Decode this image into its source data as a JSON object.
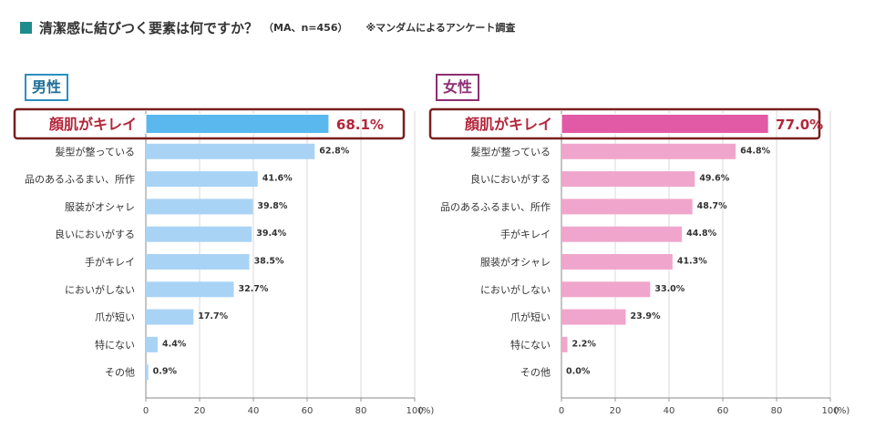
{
  "header": {
    "title": "清潔感に結びつく要素は何ですか？",
    "meta": "（MA、n=456）",
    "note": "※マンダムによるアンケート調査",
    "icon": "teal-square-icon"
  },
  "colors": {
    "male_bar": "#a9d3f5",
    "male_highlight": "#5ab8ee",
    "female_bar": "#f0a6cc",
    "female_highlight": "#e25aa6",
    "highlight_border": "#7a1e1e",
    "highlight_text": "#b3263a"
  },
  "chart_data": [
    {
      "type": "bar",
      "orientation": "horizontal",
      "panel_label": "男性",
      "categories": [
        "顔肌がキレイ",
        "髪型が整っている",
        "品のあるふるまい、所作",
        "服装がオシャレ",
        "良いにおいがする",
        "手がキレイ",
        "においがしない",
        "爪が短い",
        "特にない",
        "その他"
      ],
      "values": [
        68.1,
        62.8,
        41.6,
        39.8,
        39.4,
        38.5,
        32.7,
        17.7,
        4.4,
        0.9
      ],
      "value_labels": [
        "68.1%",
        "62.8%",
        "41.6%",
        "39.8%",
        "39.4%",
        "38.5%",
        "32.7%",
        "17.7%",
        "4.4%",
        "0.9%"
      ],
      "highlight_index": 0,
      "xlim": [
        0,
        100
      ],
      "xticks": [
        "0",
        "20",
        "40",
        "60",
        "80",
        "100"
      ],
      "xunit": "(%)"
    },
    {
      "type": "bar",
      "orientation": "horizontal",
      "panel_label": "女性",
      "categories": [
        "顔肌がキレイ",
        "髪型が整っている",
        "良いにおいがする",
        "品のあるふるまい、所作",
        "手がキレイ",
        "服装がオシャレ",
        "においがしない",
        "爪が短い",
        "特にない",
        "その他"
      ],
      "values": [
        77.0,
        64.8,
        49.6,
        48.7,
        44.8,
        41.3,
        33.0,
        23.9,
        2.2,
        0.0
      ],
      "value_labels": [
        "77.0%",
        "64.8%",
        "49.6%",
        "48.7%",
        "44.8%",
        "41.3%",
        "33.0%",
        "23.9%",
        "2.2%",
        "0.0%"
      ],
      "highlight_index": 0,
      "xlim": [
        0,
        100
      ],
      "xticks": [
        "0",
        "20",
        "40",
        "60",
        "80",
        "100"
      ],
      "xunit": "(%)"
    }
  ]
}
